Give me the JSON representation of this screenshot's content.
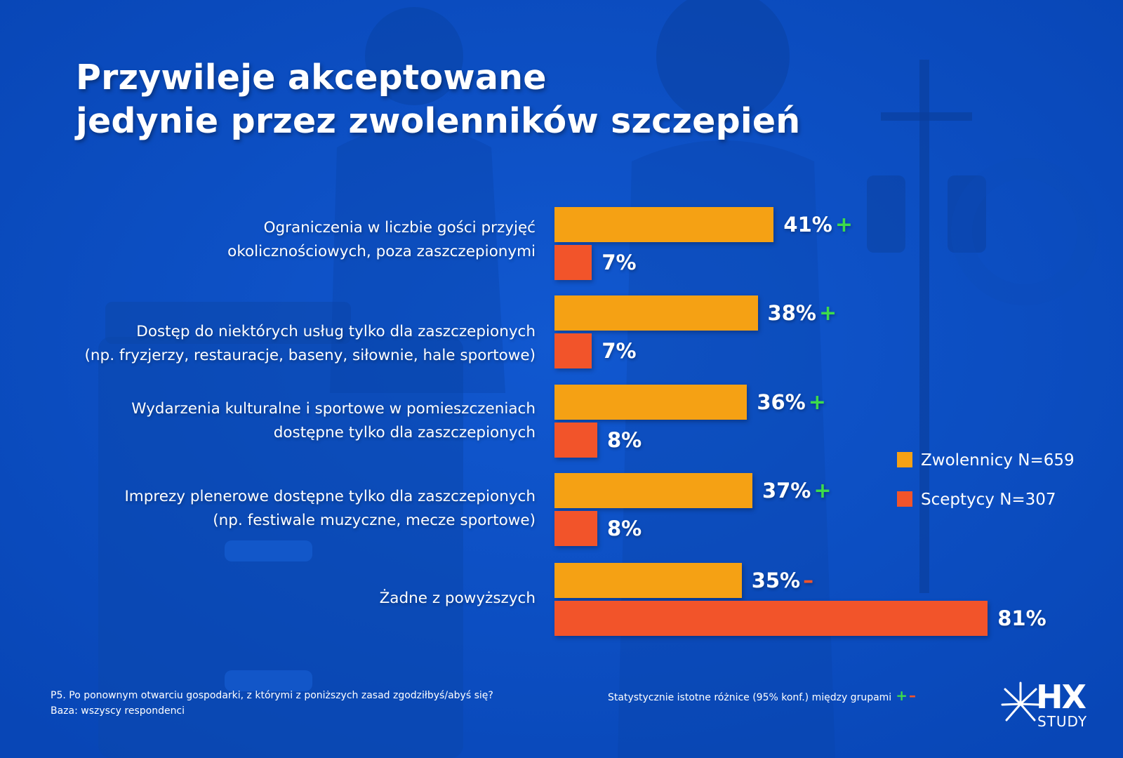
{
  "title": {
    "line1": "Przywileje akceptowane",
    "line2": "jedynie przez zwolenników szczepień"
  },
  "colors": {
    "background": "#0a4fc4",
    "series_zwolennicy": "#f5a114",
    "series_sceptycy": "#f2542a",
    "sig_plus": "#3ddc4b",
    "sig_minus": "#f2542a"
  },
  "chart_data": {
    "type": "bar",
    "orientation": "horizontal",
    "title": "Przywileje akceptowane jedynie przez zwolenników szczepień",
    "xlim": [
      0,
      100
    ],
    "categories": [
      [
        "Ograniczenia w liczbie gości przyjęć",
        "okolicznościowych, poza zaszczepionymi"
      ],
      [
        "Dostęp do niektórych usług tylko dla zaszczepionych",
        "(np. fryzjerzy, restauracje, baseny, siłownie, hale sportowe)"
      ],
      [
        "Wydarzenia kulturalne i sportowe w pomieszczeniach",
        "dostępne tylko dla zaszczepionych"
      ],
      [
        "Imprezy plenerowe dostępne tylko dla zaszczepionych",
        "(np. festiwale muzyczne, mecze sportowe)"
      ],
      [
        "Żadne z powyższych"
      ]
    ],
    "series": [
      {
        "name": "Zwolennicy N=659",
        "values": [
          41,
          38,
          36,
          37,
          35
        ],
        "labels": [
          "41%",
          "38%",
          "36%",
          "37%",
          "35%"
        ],
        "significance": [
          "+",
          "+",
          "+",
          "+",
          "–"
        ]
      },
      {
        "name": "Sceptycy N=307",
        "values": [
          7,
          7,
          8,
          8,
          81
        ],
        "labels": [
          "7%",
          "7%",
          "8%",
          "8%",
          "81%"
        ],
        "significance": [
          "",
          "",
          "",
          "",
          ""
        ]
      }
    ],
    "legend_position": "right"
  },
  "footnote": {
    "question": "P5. Po ponownym otwarciu gospodarki, z którymi z poniższych zasad zgodziłbyś/abyś się?",
    "base": "Baza: wszyscy respondenci"
  },
  "significance_note": {
    "text": "Statystycznie istotne różnice (95% konf.) między grupami",
    "plus": "+",
    "minus": "–"
  },
  "logo": {
    "main": "HX",
    "sub": "STUDY"
  }
}
